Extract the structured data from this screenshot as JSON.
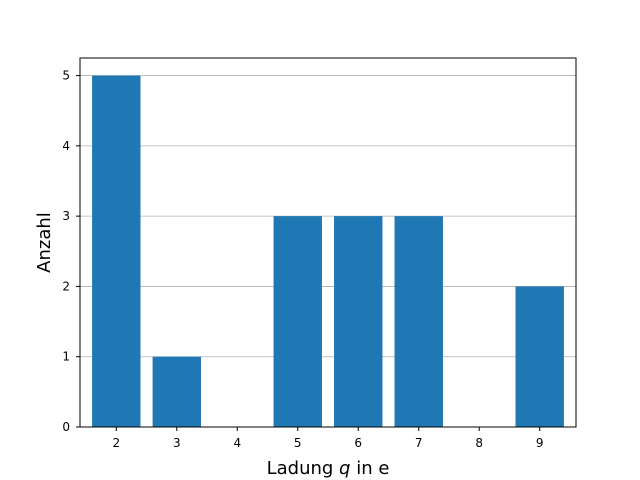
{
  "chart_data": {
    "type": "bar",
    "title": "",
    "x_ticks": [
      "2",
      "3",
      "4",
      "5",
      "6",
      "7",
      "8",
      "9"
    ],
    "x": [
      2,
      3,
      5,
      6,
      7,
      9
    ],
    "values": [
      5,
      1,
      3,
      3,
      3,
      2
    ],
    "xlabel": {
      "prefix": "Ladung ",
      "variable": "q",
      "suffix": " in e"
    },
    "ylabel": "Anzahl",
    "xlim": [
      1.4,
      9.6
    ],
    "ylim": [
      0,
      5.25
    ],
    "y_ticks": [
      0,
      1,
      2,
      3,
      4,
      5
    ],
    "bar_color": "#1f77b4",
    "grid": "horizontal",
    "grid_color": "#b0b0b0",
    "legend": "none"
  }
}
